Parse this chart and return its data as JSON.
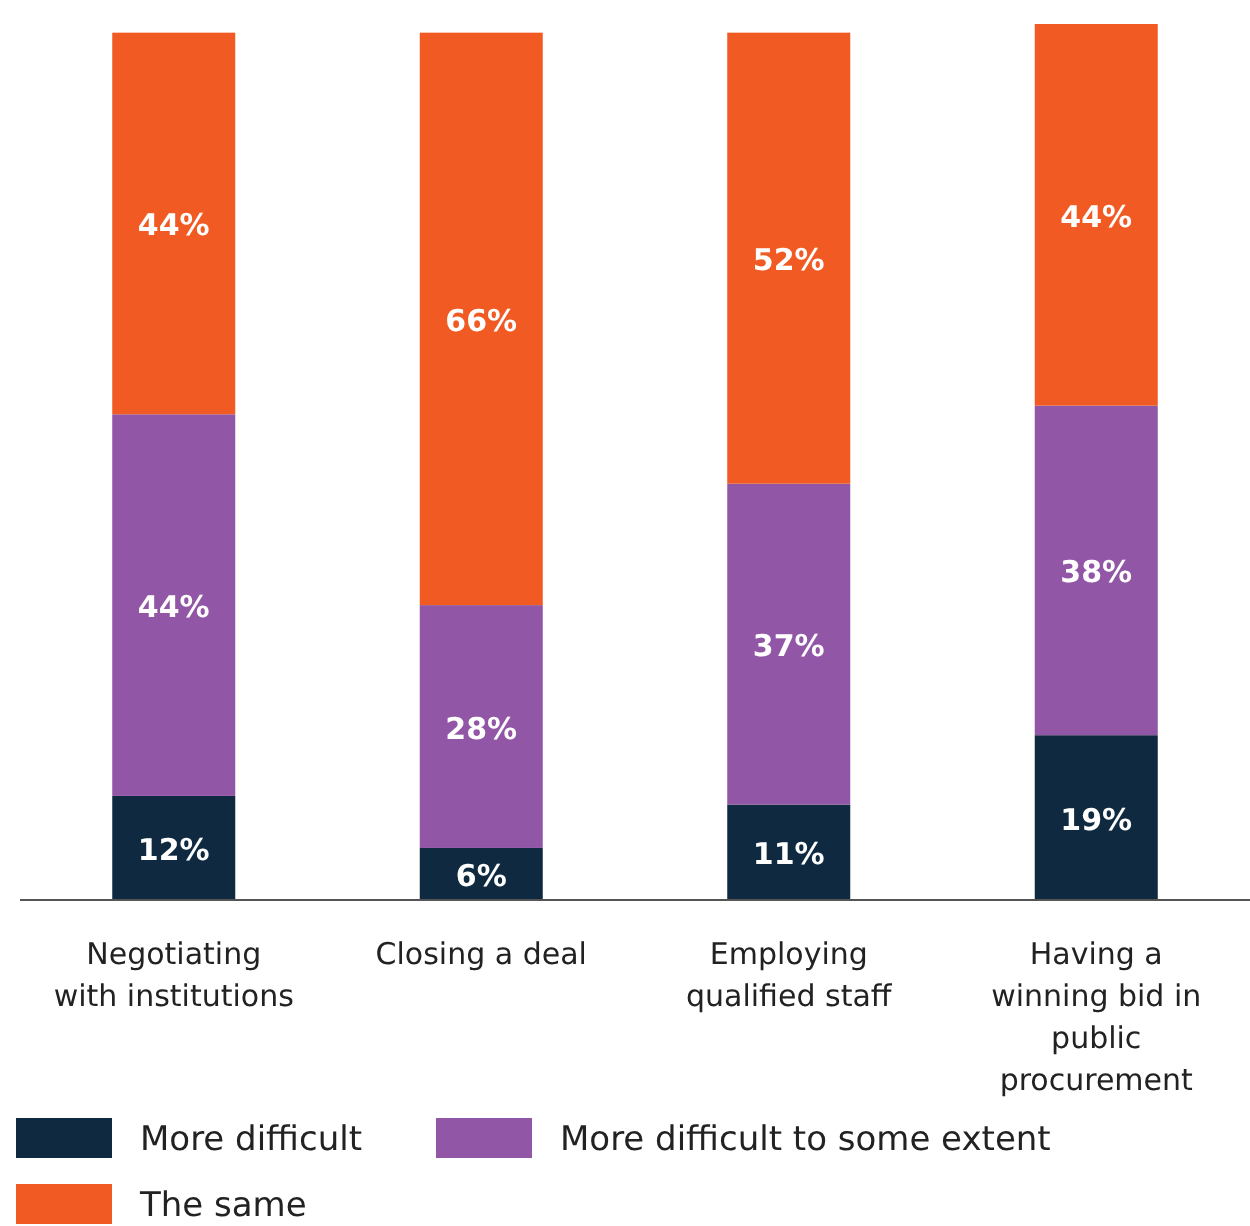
{
  "chart_data": {
    "type": "bar",
    "stacked": true,
    "legend": "bottom",
    "categories": [
      "Negotiating with institutions",
      "Closing a deal",
      "Employing qualified staff",
      "Having a winning bid in public procurement"
    ],
    "series": [
      {
        "name": "More difficult",
        "color": "#0f2940",
        "values": [
          12,
          6,
          11,
          19
        ],
        "value_labels": [
          "12%",
          "6%",
          "11%",
          "19%"
        ]
      },
      {
        "name": "More difficult to some extent",
        "color": "#9156a5",
        "values": [
          44,
          28,
          37,
          38
        ],
        "value_labels": [
          "44%",
          "28%",
          "37%",
          "38%"
        ]
      },
      {
        "name": "The same",
        "color": "#f15a22",
        "values": [
          44,
          66,
          52,
          44
        ],
        "value_labels": [
          "44%",
          "66%",
          "52%",
          "44%"
        ]
      }
    ]
  }
}
